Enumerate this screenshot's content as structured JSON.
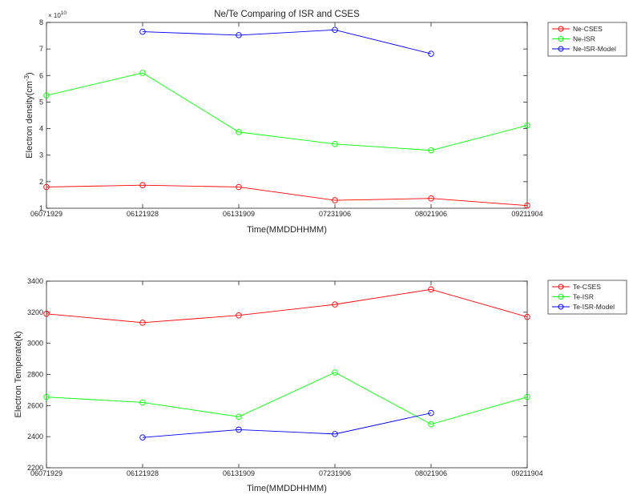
{
  "chart_data": [
    {
      "type": "line",
      "title": "Ne/Te Comparing of ISR and CSES",
      "xlabel": "Time(MMDDHHMM)",
      "ylabel": "Electron density(cm",
      "ylabel_sup": "-3",
      "ylabel_end": ")",
      "exponent_label": "× 10",
      "exponent_sup": "10",
      "categories": [
        "06071929",
        "06121928",
        "06131909",
        "07231906",
        "08021906",
        "09211904"
      ],
      "ylim": [
        1,
        8
      ],
      "yticks": [
        "1",
        "2",
        "3",
        "4",
        "5",
        "6",
        "7",
        "8"
      ],
      "legend_position": "outside-right",
      "grid": false,
      "series": [
        {
          "name": "Ne-CSES",
          "color": "#ff0000",
          "values": [
            1.8,
            1.87,
            1.8,
            1.3,
            1.37,
            1.1
          ]
        },
        {
          "name": "Ne-ISR",
          "color": "#00ff00",
          "values": [
            5.25,
            6.1,
            3.87,
            3.42,
            3.18,
            4.12
          ]
        },
        {
          "name": "Ne-ISR-Model",
          "color": "#0000ff",
          "values": [
            null,
            7.65,
            7.52,
            7.72,
            6.82,
            null
          ]
        }
      ]
    },
    {
      "type": "line",
      "title": "",
      "xlabel": "Time(MMDDHHMM)",
      "ylabel": "Electron Temperate(k)",
      "categories": [
        "06071929",
        "06121928",
        "06131909",
        "07231906",
        "08021906",
        "09211904"
      ],
      "ylim": [
        2200,
        3400
      ],
      "yticks": [
        "2200",
        "2400",
        "2600",
        "2800",
        "3000",
        "3200",
        "3400"
      ],
      "legend_position": "outside-right",
      "grid": false,
      "series": [
        {
          "name": "Te-CSES",
          "color": "#ff0000",
          "values": [
            3190,
            3133,
            3180,
            3250,
            3347,
            3170
          ]
        },
        {
          "name": "Te-ISR",
          "color": "#00ff00",
          "values": [
            2655,
            2620,
            2528,
            2813,
            2480,
            2655
          ]
        },
        {
          "name": "Te-ISR-Model",
          "color": "#0000ff",
          "values": [
            null,
            2395,
            2445,
            2417,
            2552,
            null
          ]
        }
      ]
    }
  ]
}
